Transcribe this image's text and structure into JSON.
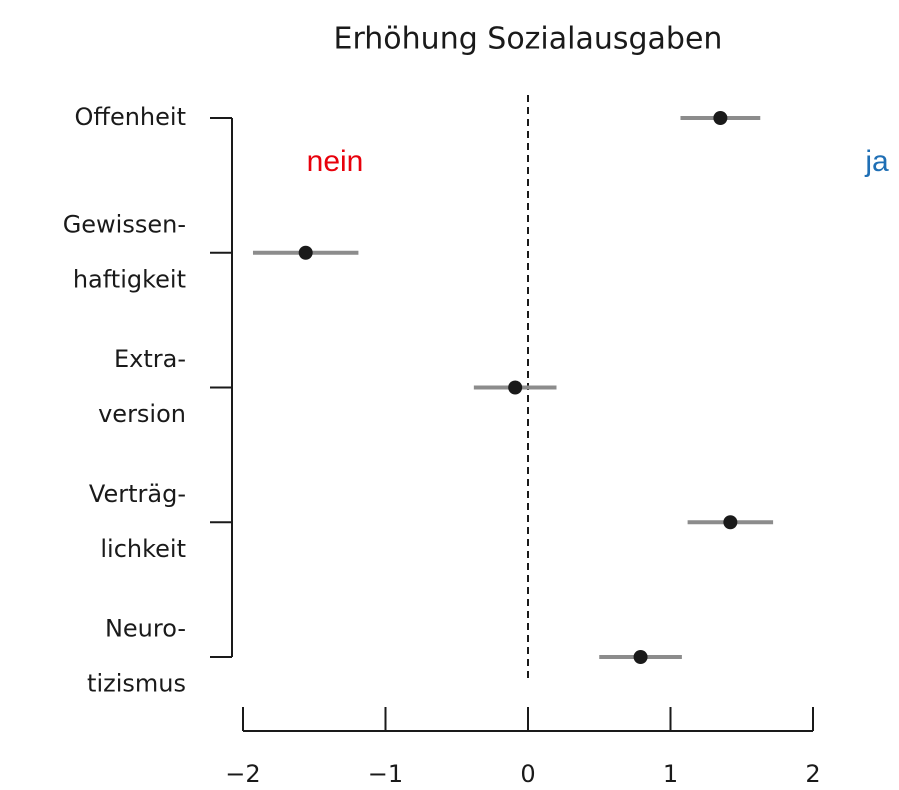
{
  "chart_data": {
    "type": "dotwhisker",
    "title": "Erhöhung Sozialausgaben",
    "categories": [
      "Offenheit",
      "Gewissen-\nhaftigkeit",
      "Extra-\nversion",
      "Verträg-\nlichkeit",
      "Neuro-\ntizismus"
    ],
    "values": [
      1.35,
      -1.56,
      -0.09,
      1.42,
      0.79
    ],
    "errors": [
      0.28,
      0.37,
      0.29,
      0.3,
      0.29
    ],
    "color": "#1a1a1a",
    "error_color": "#8c8c8c",
    "xlim": [
      -2,
      2
    ],
    "xticks": [
      {
        "value": -2,
        "label": "−2"
      },
      {
        "value": -1,
        "label": "−1"
      },
      0,
      1,
      2
    ],
    "reference_line": 0,
    "annotations": [
      {
        "text": "nein",
        "color": "#e8000b"
      },
      {
        "text": "ja",
        "color": "#1f6fb5"
      }
    ]
  }
}
